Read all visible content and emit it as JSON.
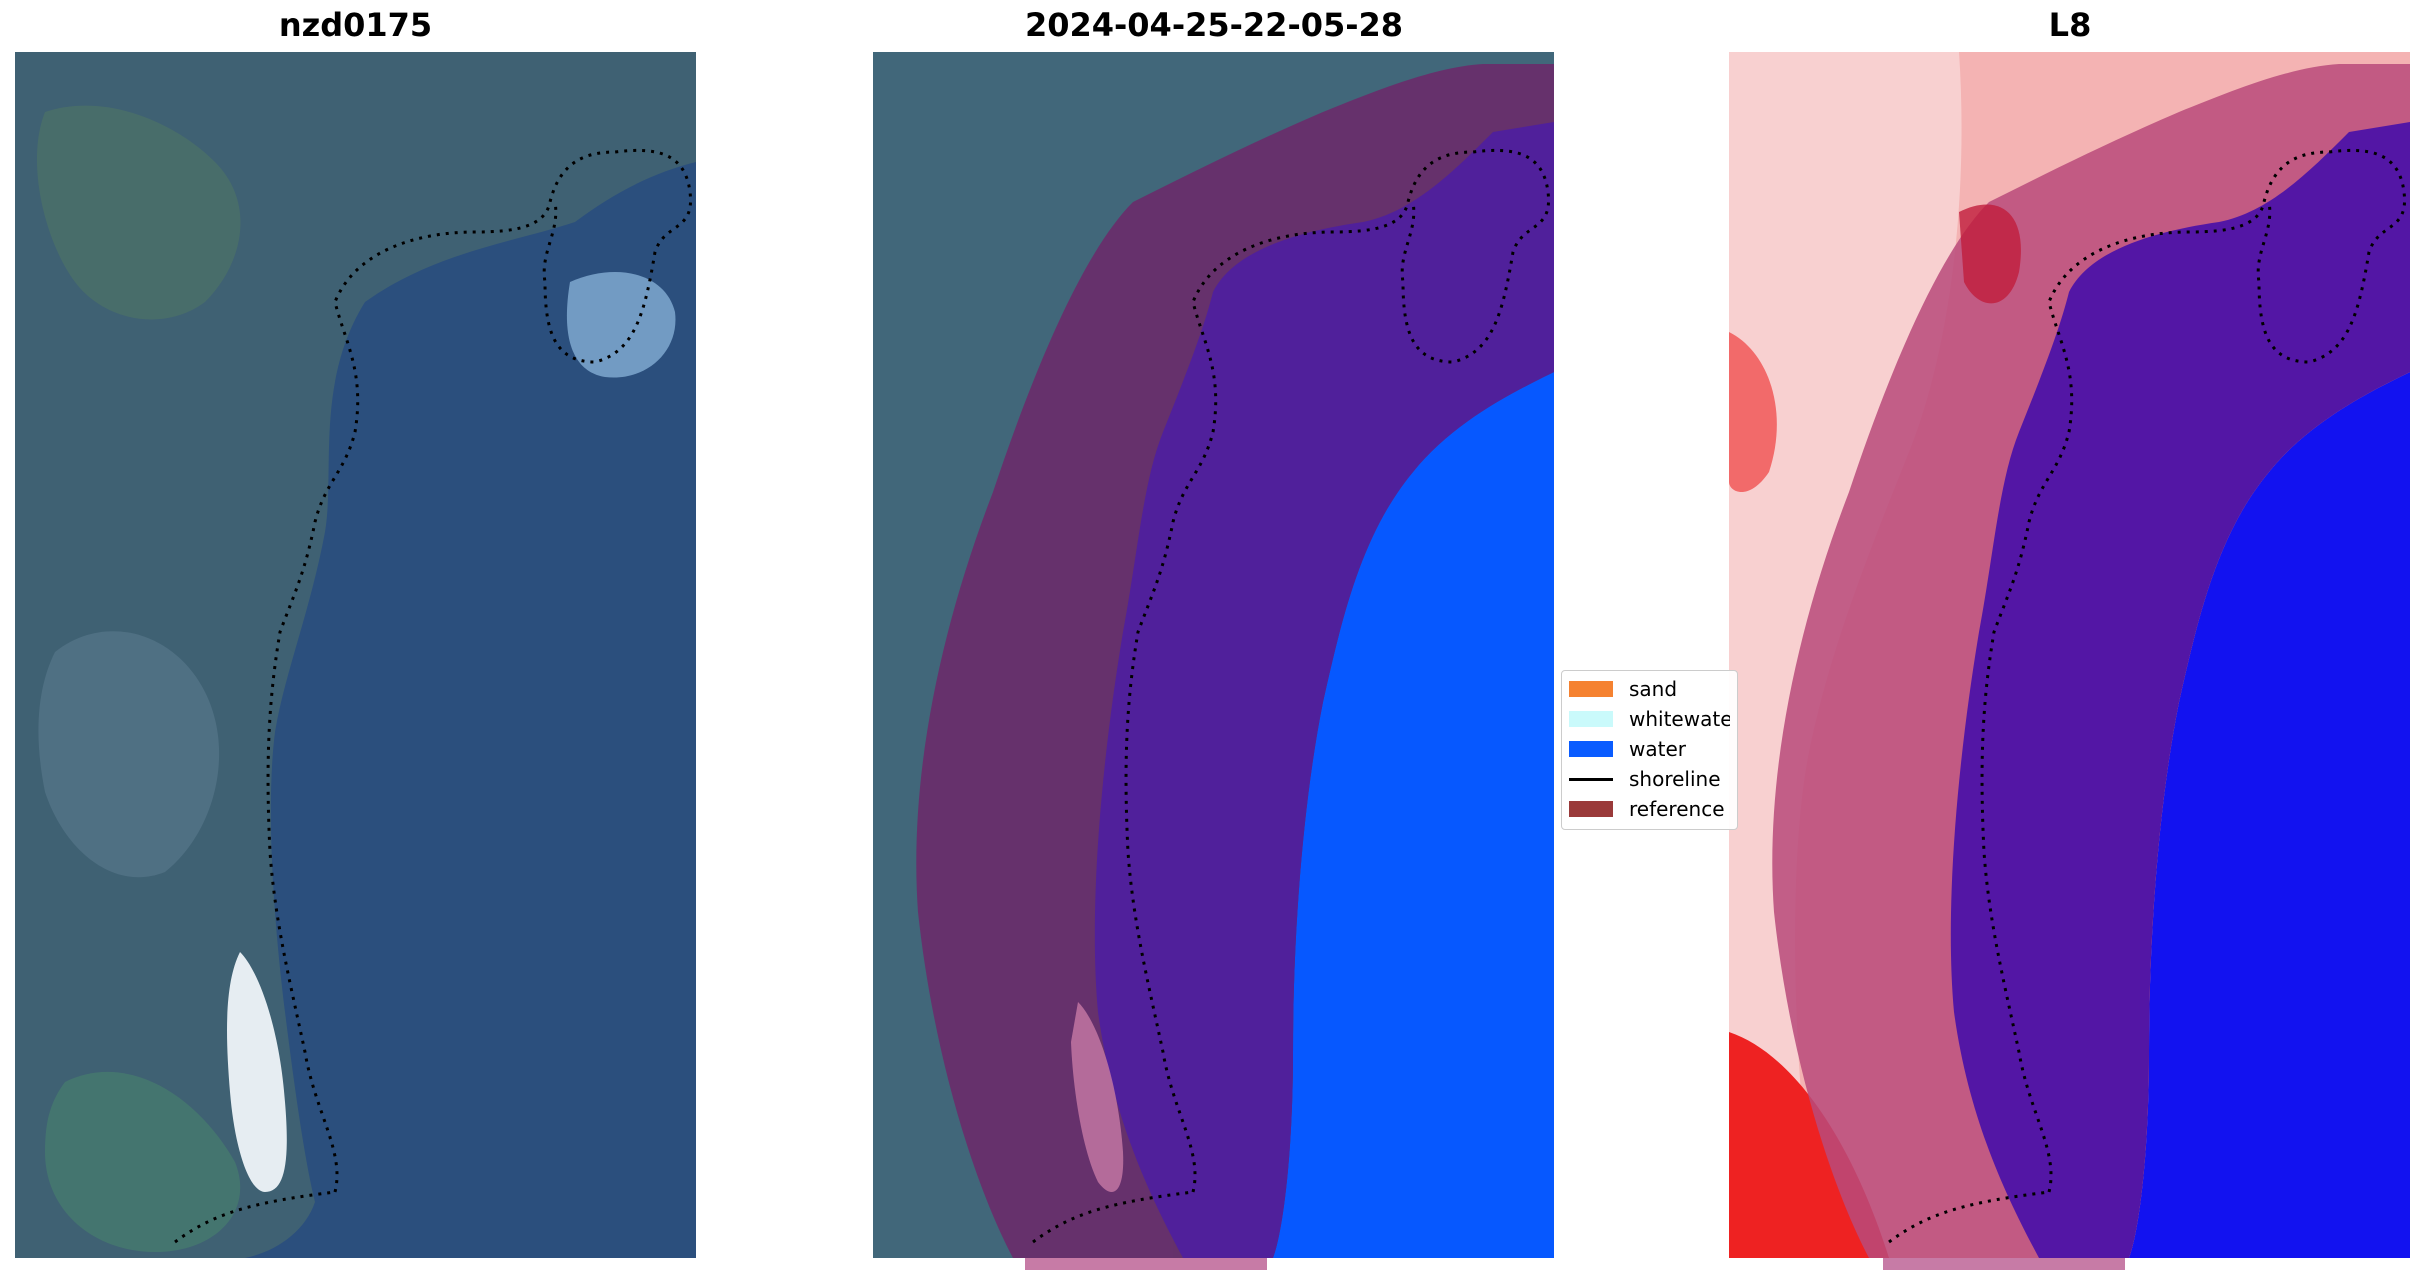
{
  "panels": [
    {
      "title": "nzd0175",
      "kind": "rgb"
    },
    {
      "title": "2024-04-25-22-05-28",
      "kind": "classification"
    },
    {
      "title": "L8",
      "kind": "index"
    }
  ],
  "legend": {
    "items": [
      {
        "label": "sand",
        "color": "#f58231"
      },
      {
        "label": "whitewater",
        "color": "#cafafb"
      },
      {
        "label": "water",
        "color": "#0a5cff"
      },
      {
        "label": "shoreline",
        "color": "#000000"
      },
      {
        "label": "reference",
        "color": "#9a3a3a"
      }
    ]
  },
  "colors": {
    "sea": "#2b4f7d",
    "land": "#3d5f74",
    "water_class": "#0658ff",
    "reference_overlay": "#6b2a6a",
    "index_land": "#f3a7a7",
    "index_water": "#1010f0"
  }
}
